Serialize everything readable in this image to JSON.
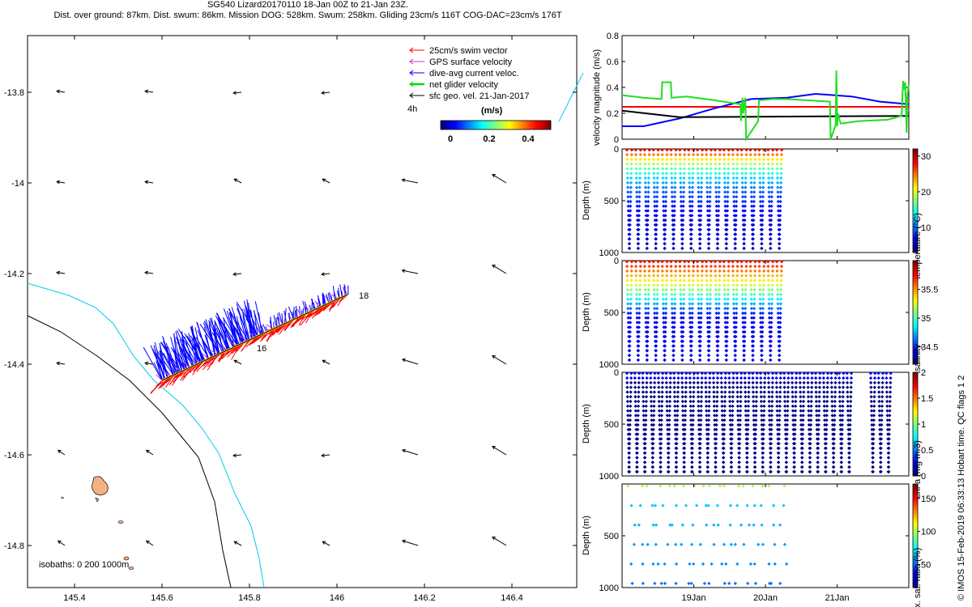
{
  "header": {
    "line1": "SG540 Lizard20170110 18-Jan 00Z to 21-Jan 23Z.",
    "line2": "Dist. over ground: 87km. Dist. swum: 86km. Mission DOG: 528km. Swum: 258km. Gliding 23cm/s 116T COG-DAC=23cm/s 176T"
  },
  "map": {
    "x_ticks": [
      "145.4",
      "145.6",
      "145.8",
      "146",
      "146.2",
      "146.4"
    ],
    "y_ticks": [
      "-13.8",
      "-14",
      "-14.2",
      "-14.4",
      "-14.6",
      "-14.8"
    ],
    "start_label": "18",
    "end_label": "16",
    "legend": [
      {
        "label": "25cm/s swim vector",
        "color": "#ff0000"
      },
      {
        "label": "GPS surface velocity",
        "color": "#cc33cc"
      },
      {
        "label": "dive-avg current veloc.",
        "color": "#0000ff"
      },
      {
        "label": "net glider velocity",
        "color": "#00dd00"
      },
      {
        "label": "sfc geo. vel. 21-Jan-2017",
        "color": "#000000"
      }
    ],
    "legend_sublabel": "4h",
    "colorbar_title": "(m/s)",
    "colorbar_ticks": [
      "0",
      "0.2",
      "0.4"
    ],
    "isobaths_text": "isobaths: 0   200  1000m"
  },
  "chart_data": [
    {
      "type": "line",
      "title": "velocity magnitude",
      "ylabel": "velocity magnitude (m/s)",
      "ylim": [
        0,
        0.8
      ],
      "yticks": [
        "0",
        "0.2",
        "0.4",
        "0.6",
        "0.8"
      ],
      "x_domain_days": [
        18.0,
        22.0
      ],
      "series": [
        {
          "name": "swim",
          "color": "#ff0000",
          "x": [
            18.0,
            22.0
          ],
          "y": [
            0.25,
            0.25
          ]
        },
        {
          "name": "dive-avg current",
          "color": "#0000ff",
          "x": [
            18.0,
            18.3,
            18.8,
            19.3,
            19.8,
            20.3,
            20.7,
            21.2,
            21.6,
            22.0
          ],
          "y": [
            0.1,
            0.1,
            0.16,
            0.24,
            0.31,
            0.32,
            0.35,
            0.33,
            0.29,
            0.27
          ]
        },
        {
          "name": "sfc geo. vel.",
          "color": "#000000",
          "x": [
            18.0,
            18.8,
            22.0
          ],
          "y": [
            0.22,
            0.17,
            0.18
          ]
        },
        {
          "name": "net glider",
          "color": "#22dd22",
          "x": [
            18.0,
            18.3,
            18.55,
            18.56,
            18.68,
            18.69,
            18.9,
            19.3,
            19.65,
            19.66,
            19.68,
            19.69,
            19.72,
            19.73,
            19.9,
            19.91,
            20.1,
            20.3,
            20.9,
            20.91,
            20.98,
            20.99,
            21.0,
            21.01,
            21.05,
            21.3,
            21.7,
            21.9,
            21.92,
            21.94,
            21.95,
            21.97,
            21.98,
            22.0
          ],
          "y": [
            0.34,
            0.32,
            0.31,
            0.44,
            0.44,
            0.32,
            0.33,
            0.3,
            0.27,
            0.14,
            0.32,
            0.2,
            0.32,
            0.0,
            0.14,
            0.3,
            0.31,
            0.31,
            0.29,
            0.0,
            0.11,
            0.53,
            0.1,
            0.2,
            0.12,
            0.14,
            0.15,
            0.18,
            0.45,
            0.38,
            0.44,
            0.05,
            0.33,
            0.43
          ]
        }
      ]
    },
    {
      "type": "scatter",
      "title": "temperature",
      "ylabel": "Depth (m)",
      "ylim": [
        1000,
        0
      ],
      "yticks": [
        "0",
        "500",
        "1000"
      ],
      "colorbar_label": "temperature (°C)",
      "colorbar_range": [
        3,
        32
      ],
      "colorbar_ticks": [
        "10",
        "20",
        "30"
      ],
      "dives": 18,
      "profile_depth_range": [
        10,
        960
      ],
      "surface_value": 30,
      "bottom_value": 4
    },
    {
      "type": "scatter",
      "title": "salinity",
      "ylabel": "Depth (m)",
      "ylim": [
        1000,
        0
      ],
      "yticks": [
        "0",
        "500",
        "1000"
      ],
      "colorbar_label": "salinity",
      "colorbar_range": [
        34.2,
        36.0
      ],
      "colorbar_ticks": [
        "34.5",
        "35",
        "35.5"
      ],
      "dives": 18,
      "profile_depth_range": [
        10,
        960
      ],
      "surface_value": 35.8,
      "bottom_value": 34.4
    },
    {
      "type": "scatter",
      "title": "chl-a",
      "ylabel": "Depth (m)",
      "ylim": [
        1000,
        0
      ],
      "yticks": [
        "0",
        "500",
        "1000"
      ],
      "colorbar_label": "chl-a (mg m-3)",
      "colorbar_range": [
        0,
        2
      ],
      "colorbar_ticks": [
        "0",
        "0.5",
        "1",
        "1.5",
        "2"
      ],
      "dives": 34,
      "profile_depth_range": [
        10,
        960
      ],
      "surface_value": 0.3,
      "bottom_value": 0.0
    },
    {
      "type": "scatter",
      "title": "Ox. sat. ratio",
      "ylabel": "Depth (m)",
      "ylim": [
        1000,
        0
      ],
      "yticks": [
        "500",
        "1000"
      ],
      "colorbar_label": "Ox. sat. ratio (%)",
      "colorbar_range": [
        15,
        172
      ],
      "colorbar_ticks": [
        "50",
        "100",
        "150"
      ],
      "dives": 18,
      "profile_depth_range": [
        20,
        960
      ],
      "surface_value": 100,
      "bottom_value": 45
    }
  ],
  "time_axis": {
    "ticks": [
      "19Jan",
      "20Jan",
      "21Jan"
    ],
    "tick_days": [
      19,
      20,
      21
    ]
  },
  "footer": {
    "side_text": "© IMOS 15-Feb-2019 06:33:13 Hobart time. QC flags 1  2"
  }
}
